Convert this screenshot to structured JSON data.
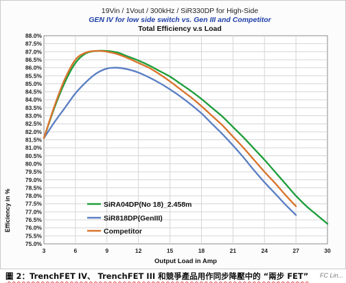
{
  "chart_data": {
    "type": "line",
    "title_lines": [
      "19Vin / 1Vout / 300kHz / SiR330DP for High-Side",
      "GEN IV for low side switch vs. Gen III and Competitor",
      "Total Efficiency v.s Load"
    ],
    "title_colors": [
      "#222222",
      "#1f3fa8",
      "#111111"
    ],
    "xlabel": "Output Load in Amp",
    "ylabel": "Efficiency in %",
    "xlim": [
      3,
      30
    ],
    "ylim": [
      75.0,
      88.0
    ],
    "x_ticks": [
      "3",
      "6",
      "9",
      "12",
      "15",
      "18",
      "21",
      "24",
      "27",
      "30"
    ],
    "y_ticks": [
      "75.0%",
      "75.5%",
      "76.0%",
      "76.5%",
      "77.0%",
      "77.5%",
      "78.0%",
      "78.5%",
      "79.0%",
      "79.5%",
      "80.0%",
      "80.5%",
      "81.0%",
      "81.5%",
      "82.0%",
      "82.5%",
      "83.0%",
      "83.5%",
      "84.0%",
      "84.5%",
      "85.0%",
      "85.5%",
      "86.0%",
      "86.5%",
      "87.0%",
      "87.5%",
      "88.0%"
    ],
    "grid": true,
    "legend_position": "bottom-left",
    "series": [
      {
        "name": "SiRA04DP(No 18)_2.458m",
        "color": "#1f9e3c",
        "x": [
          3,
          4,
          5,
          6,
          7,
          8,
          9,
          10,
          11,
          12,
          13,
          14,
          15,
          16,
          17,
          18,
          19,
          20,
          21,
          22,
          23,
          24,
          25,
          26,
          27,
          28,
          29,
          30
        ],
        "y": [
          81.6,
          83.5,
          85.1,
          86.3,
          86.9,
          87.05,
          87.05,
          86.95,
          86.7,
          86.45,
          86.15,
          85.8,
          85.45,
          85.0,
          84.55,
          84.05,
          83.5,
          82.95,
          82.3,
          81.65,
          80.95,
          80.25,
          79.5,
          78.75,
          78.0,
          77.35,
          76.8,
          76.25
        ]
      },
      {
        "name": "SiR818DP(GenIII)",
        "color": "#5b7fc4",
        "x": [
          3,
          4,
          5,
          6,
          7,
          8,
          9,
          10,
          11,
          12,
          13,
          14,
          15,
          16,
          17,
          18,
          19,
          20,
          21,
          22,
          23,
          24,
          25,
          26,
          27
        ],
        "y": [
          81.6,
          82.6,
          83.5,
          84.4,
          85.1,
          85.65,
          85.95,
          86.0,
          85.9,
          85.7,
          85.4,
          85.05,
          84.65,
          84.2,
          83.7,
          83.15,
          82.5,
          81.85,
          81.15,
          80.4,
          79.6,
          78.85,
          78.15,
          77.45,
          76.8
        ]
      },
      {
        "name": "Competitor",
        "color": "#d8742d",
        "x": [
          3,
          4,
          5,
          6,
          7,
          8,
          9,
          10,
          11,
          12,
          13,
          14,
          15,
          16,
          17,
          18,
          19,
          20,
          21,
          22,
          23,
          24,
          25,
          26,
          27
        ],
        "y": [
          81.6,
          83.6,
          85.3,
          86.5,
          86.95,
          87.05,
          87.0,
          86.85,
          86.6,
          86.3,
          86.0,
          85.6,
          85.15,
          84.65,
          84.15,
          83.6,
          83.0,
          82.4,
          81.7,
          81.0,
          80.25,
          79.5,
          78.8,
          78.05,
          77.35
        ]
      }
    ]
  },
  "caption": "圖 2：TrenchFET IV、 TrenchFET III 和競爭產品用作同步降壓中的 “兩步 FET”",
  "watermark": "FC Lin..."
}
